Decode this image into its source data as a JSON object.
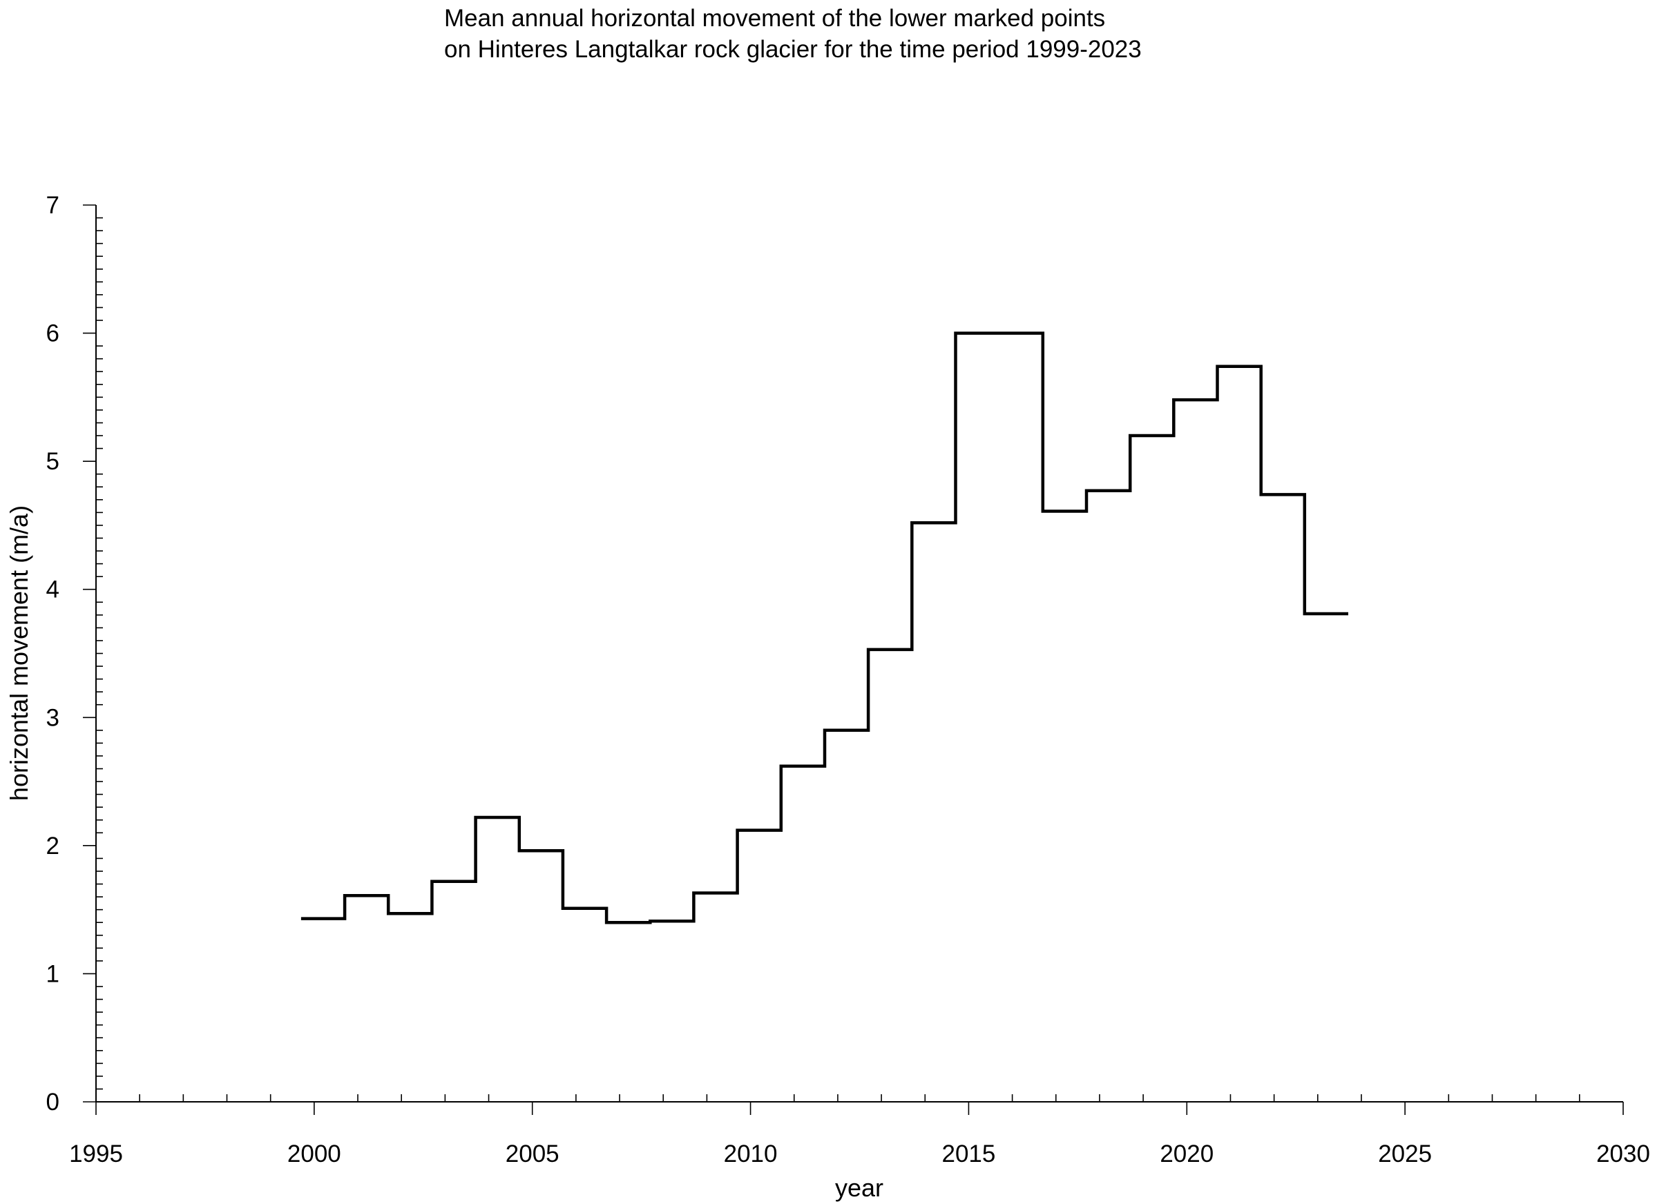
{
  "chart_data": {
    "type": "line",
    "style": "step",
    "title_lines": [
      "Mean annual horizontal movement of the lower marked points",
      "on Hinteres Langtalkar rock glacier for the time period 1999-2023"
    ],
    "xlabel": "year",
    "ylabel": "horizontal movement (m/a)",
    "xlim": [
      1995,
      2030
    ],
    "ylim": [
      0,
      7
    ],
    "x_ticks": [
      1995,
      2000,
      2005,
      2010,
      2015,
      2020,
      2025,
      2030
    ],
    "y_ticks": [
      0,
      1,
      2,
      3,
      4,
      5,
      6,
      7
    ],
    "x_minor_step": 1,
    "y_minor_step": 0.1,
    "grid": false,
    "line_color": "#000000",
    "intervals": [
      {
        "start": 1999.7,
        "end": 2000.7,
        "value": 1.43
      },
      {
        "start": 2000.7,
        "end": 2001.7,
        "value": 1.61
      },
      {
        "start": 2001.7,
        "end": 2002.7,
        "value": 1.47
      },
      {
        "start": 2002.7,
        "end": 2003.7,
        "value": 1.72
      },
      {
        "start": 2003.7,
        "end": 2004.7,
        "value": 2.22
      },
      {
        "start": 2004.7,
        "end": 2005.7,
        "value": 1.96
      },
      {
        "start": 2005.7,
        "end": 2006.7,
        "value": 1.51
      },
      {
        "start": 2006.7,
        "end": 2007.7,
        "value": 1.4
      },
      {
        "start": 2007.7,
        "end": 2008.7,
        "value": 1.41
      },
      {
        "start": 2008.7,
        "end": 2009.7,
        "value": 1.63
      },
      {
        "start": 2009.7,
        "end": 2010.7,
        "value": 2.12
      },
      {
        "start": 2010.7,
        "end": 2011.7,
        "value": 2.62
      },
      {
        "start": 2011.7,
        "end": 2012.7,
        "value": 2.9
      },
      {
        "start": 2012.7,
        "end": 2013.7,
        "value": 3.53
      },
      {
        "start": 2013.7,
        "end": 2014.7,
        "value": 4.52
      },
      {
        "start": 2014.7,
        "end": 2015.7,
        "value": 6.0
      },
      {
        "start": 2015.7,
        "end": 2016.7,
        "value": 6.0
      },
      {
        "start": 2016.7,
        "end": 2017.7,
        "value": 4.61
      },
      {
        "start": 2017.7,
        "end": 2018.7,
        "value": 4.77
      },
      {
        "start": 2018.7,
        "end": 2019.7,
        "value": 5.2
      },
      {
        "start": 2019.7,
        "end": 2020.7,
        "value": 5.48
      },
      {
        "start": 2020.7,
        "end": 2021.7,
        "value": 5.74
      },
      {
        "start": 2021.7,
        "end": 2022.7,
        "value": 4.74
      },
      {
        "start": 2022.7,
        "end": 2023.7,
        "value": 3.81
      }
    ]
  }
}
